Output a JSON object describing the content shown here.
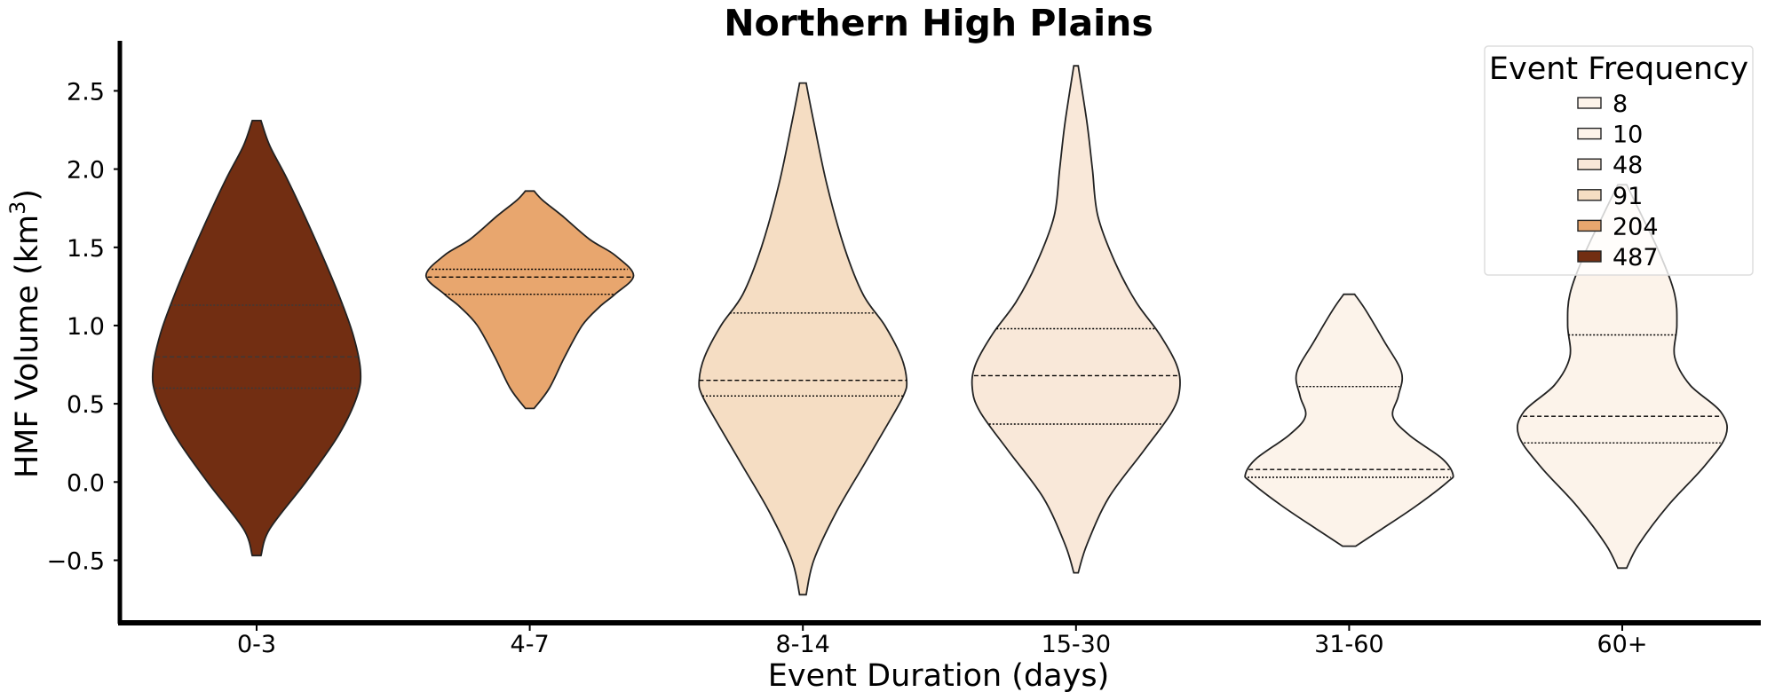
{
  "chart_data": {
    "type": "violin",
    "title": "Northern High Plains",
    "xlabel": "Event Duration (days)",
    "ylabel_main": "HMF Volume (km",
    "ylabel_sup": "3",
    "ylabel_close": ")",
    "ylim": [
      -0.9,
      2.82
    ],
    "yticks": [
      {
        "value": -0.5,
        "label": "−0.5"
      },
      {
        "value": 0.0,
        "label": "0.0"
      },
      {
        "value": 0.5,
        "label": "0.5"
      },
      {
        "value": 1.0,
        "label": "1.0"
      },
      {
        "value": 1.5,
        "label": "1.5"
      },
      {
        "value": 2.0,
        "label": "2.0"
      },
      {
        "value": 2.5,
        "label": "2.5"
      }
    ],
    "grid": false,
    "categories": [
      "0-3",
      "4-7",
      "8-14",
      "15-30",
      "31-60",
      "60+"
    ],
    "violins": [
      {
        "category": "0-3",
        "frequency": 487,
        "color": "#722e12",
        "min": -0.47,
        "max": 2.31,
        "q1": 0.6,
        "median": 0.8,
        "q3": 1.13,
        "line_color": "#3a3a3a",
        "profile": [
          [
            -0.47,
            0.04
          ],
          [
            -0.3,
            0.12
          ],
          [
            0.0,
            0.45
          ],
          [
            0.3,
            0.75
          ],
          [
            0.55,
            0.92
          ],
          [
            0.72,
            0.95
          ],
          [
            0.95,
            0.88
          ],
          [
            1.2,
            0.75
          ],
          [
            1.45,
            0.6
          ],
          [
            1.7,
            0.44
          ],
          [
            1.95,
            0.27
          ],
          [
            2.15,
            0.12
          ],
          [
            2.31,
            0.04
          ]
        ]
      },
      {
        "category": "4-7",
        "frequency": 204,
        "color": "#e8a66e",
        "min": 0.47,
        "max": 1.86,
        "q1": 1.2,
        "median": 1.31,
        "q3": 1.36,
        "line_color": "#000000",
        "profile": [
          [
            0.47,
            0.04
          ],
          [
            0.6,
            0.18
          ],
          [
            0.8,
            0.32
          ],
          [
            1.0,
            0.48
          ],
          [
            1.12,
            0.64
          ],
          [
            1.2,
            0.78
          ],
          [
            1.32,
            0.95
          ],
          [
            1.45,
            0.78
          ],
          [
            1.55,
            0.55
          ],
          [
            1.7,
            0.3
          ],
          [
            1.8,
            0.12
          ],
          [
            1.86,
            0.04
          ]
        ]
      },
      {
        "category": "8-14",
        "frequency": 91,
        "color": "#f5ddc3",
        "min": -0.72,
        "max": 2.55,
        "q1": 0.55,
        "median": 0.65,
        "q3": 1.08,
        "line_color": "#000000",
        "profile": [
          [
            -0.72,
            0.03
          ],
          [
            -0.5,
            0.1
          ],
          [
            -0.2,
            0.3
          ],
          [
            0.1,
            0.55
          ],
          [
            0.35,
            0.76
          ],
          [
            0.55,
            0.92
          ],
          [
            0.65,
            0.95
          ],
          [
            0.8,
            0.9
          ],
          [
            1.0,
            0.75
          ],
          [
            1.2,
            0.55
          ],
          [
            1.5,
            0.38
          ],
          [
            1.9,
            0.22
          ],
          [
            2.3,
            0.1
          ],
          [
            2.55,
            0.03
          ]
        ]
      },
      {
        "category": "15-30",
        "frequency": 48,
        "color": "#f9e8d9",
        "min": -0.58,
        "max": 2.66,
        "q1": 0.37,
        "median": 0.68,
        "q3": 0.98,
        "line_color": "#000000",
        "profile": [
          [
            -0.58,
            0.02
          ],
          [
            -0.4,
            0.1
          ],
          [
            -0.1,
            0.3
          ],
          [
            0.2,
            0.62
          ],
          [
            0.45,
            0.88
          ],
          [
            0.6,
            0.95
          ],
          [
            0.75,
            0.92
          ],
          [
            0.95,
            0.76
          ],
          [
            1.15,
            0.55
          ],
          [
            1.4,
            0.36
          ],
          [
            1.7,
            0.2
          ],
          [
            2.0,
            0.15
          ],
          [
            2.3,
            0.1
          ],
          [
            2.66,
            0.02
          ]
        ]
      },
      {
        "category": "31-60",
        "frequency": 8,
        "color": "#fcf3ea",
        "min": -0.41,
        "max": 1.2,
        "q1": 0.03,
        "median": 0.08,
        "q3": 0.61,
        "line_color": "#000000",
        "profile": [
          [
            -0.41,
            0.06
          ],
          [
            -0.3,
            0.3
          ],
          [
            -0.15,
            0.62
          ],
          [
            0.0,
            0.9
          ],
          [
            0.05,
            0.95
          ],
          [
            0.15,
            0.85
          ],
          [
            0.3,
            0.55
          ],
          [
            0.42,
            0.4
          ],
          [
            0.55,
            0.45
          ],
          [
            0.7,
            0.48
          ],
          [
            0.9,
            0.32
          ],
          [
            1.1,
            0.15
          ],
          [
            1.2,
            0.05
          ]
        ]
      },
      {
        "category": "60+",
        "frequency": 10,
        "color": "#fcf3ea",
        "min": -0.55,
        "max": 1.9,
        "q1": 0.25,
        "median": 0.42,
        "q3": 0.94,
        "line_color": "#000000",
        "profile": [
          [
            -0.55,
            0.04
          ],
          [
            -0.4,
            0.15
          ],
          [
            -0.15,
            0.42
          ],
          [
            0.1,
            0.75
          ],
          [
            0.3,
            0.95
          ],
          [
            0.45,
            0.9
          ],
          [
            0.62,
            0.62
          ],
          [
            0.8,
            0.48
          ],
          [
            1.0,
            0.5
          ],
          [
            1.2,
            0.48
          ],
          [
            1.45,
            0.35
          ],
          [
            1.7,
            0.18
          ],
          [
            1.9,
            0.04
          ]
        ]
      }
    ],
    "legend": {
      "title": "Event Frequency",
      "placement": "top-right",
      "entries": [
        {
          "label": "8",
          "color": "#fcf3ea"
        },
        {
          "label": "10",
          "color": "#fcf3ea"
        },
        {
          "label": "48",
          "color": "#f9e8d9"
        },
        {
          "label": "91",
          "color": "#f5ddc3"
        },
        {
          "label": "204",
          "color": "#e8a66e"
        },
        {
          "label": "487",
          "color": "#722e12"
        }
      ]
    }
  }
}
